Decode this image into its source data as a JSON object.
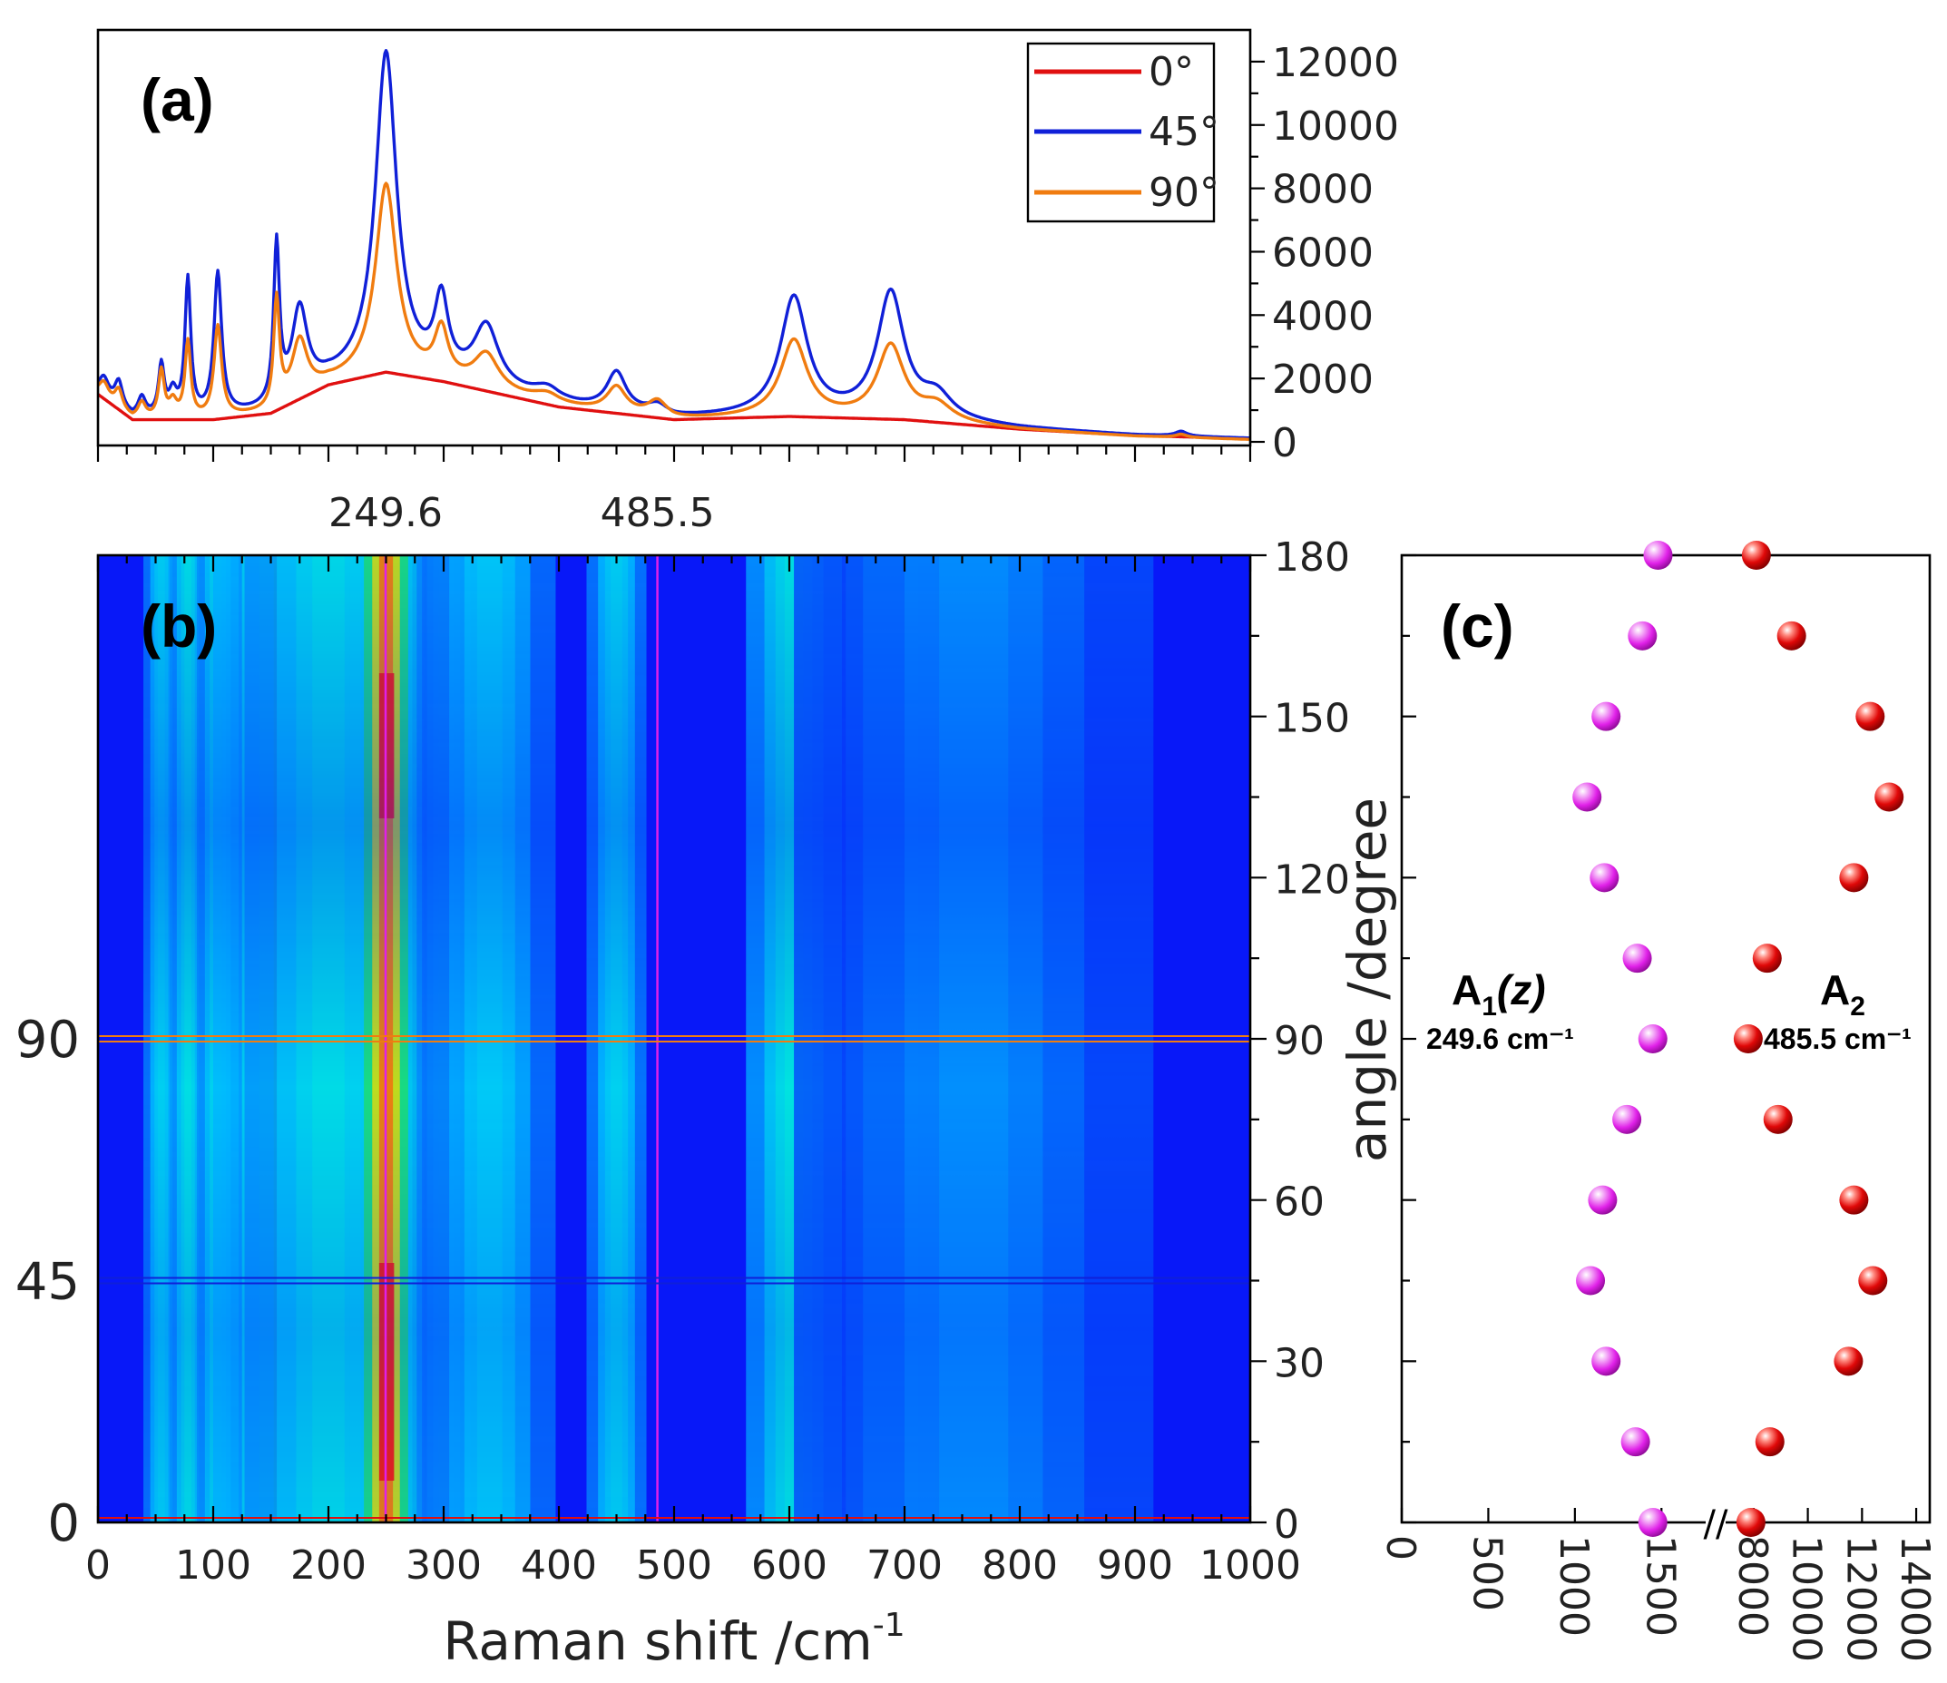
{
  "colors": {
    "deg0": "#e01010",
    "deg45": "#1020d8",
    "deg90": "#f07c10",
    "a1_marker": "#e020e8",
    "a2_marker": "#e00808",
    "map_low": "#0818f8",
    "map_high": "#ff1800"
  },
  "chart_data": [
    {
      "panel": "(a)",
      "type": "line",
      "xlabel": "",
      "ylabel": "",
      "xlim": [
        0,
        1000
      ],
      "ylim": [
        0,
        13000
      ],
      "y_ticks": [
        0,
        2000,
        4000,
        6000,
        8000,
        10000,
        12000
      ],
      "y_tick_labels": [
        "0",
        "2000",
        "4000",
        "6000",
        "8000",
        "10000",
        "12000"
      ],
      "x_marked_labels": [
        "249.6",
        "485.5"
      ],
      "x_marked_values": [
        249.6,
        485.5
      ],
      "legend": [
        "0°",
        "45°",
        "90°"
      ],
      "legend_position": "top-right",
      "peaks": [
        {
          "center": 5,
          "width": 5
        },
        {
          "center": 18,
          "width": 4
        },
        {
          "center": 38,
          "width": 4
        },
        {
          "center": 55,
          "width": 3
        },
        {
          "center": 65,
          "width": 4
        },
        {
          "center": 78,
          "width": 3
        },
        {
          "center": 104,
          "width": 4
        },
        {
          "center": 155,
          "width": 3
        },
        {
          "center": 175,
          "width": 8
        },
        {
          "center": 250,
          "width": 11
        },
        {
          "center": 298,
          "width": 7
        },
        {
          "center": 337,
          "width": 13
        },
        {
          "center": 390,
          "width": 15
        },
        {
          "center": 450,
          "width": 10
        },
        {
          "center": 485.5,
          "width": 10
        },
        {
          "center": 604,
          "width": 14
        },
        {
          "center": 688,
          "width": 14
        },
        {
          "center": 728,
          "width": 16
        },
        {
          "center": 940,
          "width": 6
        }
      ],
      "baseline": [
        [
          0,
          1500
        ],
        [
          30,
          700
        ],
        [
          100,
          700
        ],
        [
          150,
          900
        ],
        [
          200,
          1800
        ],
        [
          250,
          2200
        ],
        [
          300,
          1900
        ],
        [
          400,
          1100
        ],
        [
          500,
          700
        ],
        [
          600,
          800
        ],
        [
          700,
          700
        ],
        [
          800,
          400
        ],
        [
          900,
          200
        ],
        [
          1000,
          100
        ]
      ],
      "series": [
        {
          "name": "0°",
          "amplitudes": [
            0,
            0,
            0,
            0,
            0,
            0,
            0,
            0,
            0,
            0,
            0,
            0,
            0,
            0,
            0,
            0,
            0,
            0,
            0
          ]
        },
        {
          "name": "45°",
          "amplitudes": [
            600,
            800,
            600,
            1600,
            700,
            4300,
            4500,
            5000,
            2700,
            10000,
            2300,
            1900,
            400,
            1200,
            300,
            3700,
            3900,
            700,
            150
          ]
        },
        {
          "name": "90°",
          "amplitudes": [
            500,
            600,
            500,
            1500,
            500,
            2400,
            2900,
            3400,
            1800,
            5900,
            1500,
            1100,
            300,
            800,
            500,
            2400,
            2300,
            500,
            100
          ]
        }
      ]
    },
    {
      "panel": "(b)",
      "type": "heatmap",
      "xlabel": "Raman shift /cm",
      "xlabel_sup": "-1",
      "ylabel": "angle /degree",
      "xlim": [
        0,
        1000
      ],
      "ylim": [
        0,
        180
      ],
      "x_ticks": [
        0,
        100,
        200,
        300,
        400,
        500,
        600,
        700,
        800,
        900,
        1000
      ],
      "x_tick_labels": [
        "0",
        "100",
        "200",
        "300",
        "400",
        "500",
        "600",
        "700",
        "800",
        "900",
        "1000"
      ],
      "y_ticks_right": [
        0,
        30,
        60,
        90,
        120,
        150,
        180
      ],
      "y_tick_labels_right": [
        "0",
        "30",
        "60",
        "90",
        "120",
        "150",
        "180"
      ],
      "y_marked_labels_left": [
        "0",
        "45",
        "90"
      ],
      "y_marked_values_left": [
        0,
        45,
        90
      ],
      "cut_lines": [
        {
          "axis": "x",
          "value": 249.6,
          "color": "#e020e8"
        },
        {
          "axis": "x",
          "value": 485.5,
          "color": "#e020e8"
        },
        {
          "axis": "y",
          "value": 0,
          "color": "#e01010"
        },
        {
          "axis": "y",
          "value": 45,
          "color": "#1020d8"
        },
        {
          "axis": "y",
          "value": 90,
          "color": "#f07c10"
        }
      ],
      "bands": [
        {
          "center": 55,
          "width": 6,
          "intensity": 0.42
        },
        {
          "center": 78,
          "width": 6,
          "intensity": 0.52
        },
        {
          "center": 104,
          "width": 7,
          "intensity": 0.5
        },
        {
          "center": 165,
          "width": 25,
          "intensity": 0.64
        },
        {
          "center": 200,
          "width": 28,
          "intensity": 0.5
        },
        {
          "center": 250,
          "width": 12,
          "intensity": 0.92
        },
        {
          "center": 300,
          "width": 9,
          "intensity": 0.45
        },
        {
          "center": 340,
          "width": 22,
          "intensity": 0.38
        },
        {
          "center": 450,
          "width": 10,
          "intensity": 0.43
        },
        {
          "center": 604,
          "width": 16,
          "intensity": 0.55
        },
        {
          "center": 688,
          "width": 15,
          "intensity": 0.53
        },
        {
          "center": 760,
          "width": 60,
          "intensity": 0.22
        }
      ]
    },
    {
      "panel": "(c)",
      "type": "scatter",
      "xlim_left": [
        0,
        1750
      ],
      "x_ticks_left": [
        0,
        500,
        1000,
        1500
      ],
      "x_tick_labels_left": [
        "0",
        "500",
        "1000",
        "1500"
      ],
      "xlim_right": [
        7000,
        14500
      ],
      "x_ticks_right": [
        8000,
        10000,
        12000,
        14000
      ],
      "x_tick_labels_right": [
        "8000",
        "10000",
        "12000",
        "14000"
      ],
      "axis_break": "//",
      "ylim": [
        0,
        180
      ],
      "series": [
        {
          "name": "A1(z)",
          "label_main": "A",
          "label_sub": "1",
          "label_paren": "(z)",
          "wavenumber": "249.6 cm⁻¹",
          "points": [
            [
              1450,
              0
            ],
            [
              1350,
              15
            ],
            [
              1180,
              30
            ],
            [
              1090,
              45
            ],
            [
              1160,
              60
            ],
            [
              1300,
              75
            ],
            [
              1450,
              90
            ],
            [
              1360,
              105
            ],
            [
              1170,
              120
            ],
            [
              1070,
              135
            ],
            [
              1180,
              150
            ],
            [
              1390,
              165
            ],
            [
              1480,
              180
            ]
          ]
        },
        {
          "name": "A2",
          "label_main": "A",
          "label_sub": "2",
          "wavenumber": "485.5 cm⁻¹",
          "points": [
            [
              7900,
              0
            ],
            [
              8600,
              15
            ],
            [
              11500,
              30
            ],
            [
              12400,
              45
            ],
            [
              11700,
              60
            ],
            [
              8900,
              75
            ],
            [
              7800,
              90
            ],
            [
              8500,
              105
            ],
            [
              11700,
              120
            ],
            [
              13000,
              135
            ],
            [
              12300,
              150
            ],
            [
              9400,
              165
            ],
            [
              8100,
              180
            ]
          ]
        }
      ]
    }
  ]
}
